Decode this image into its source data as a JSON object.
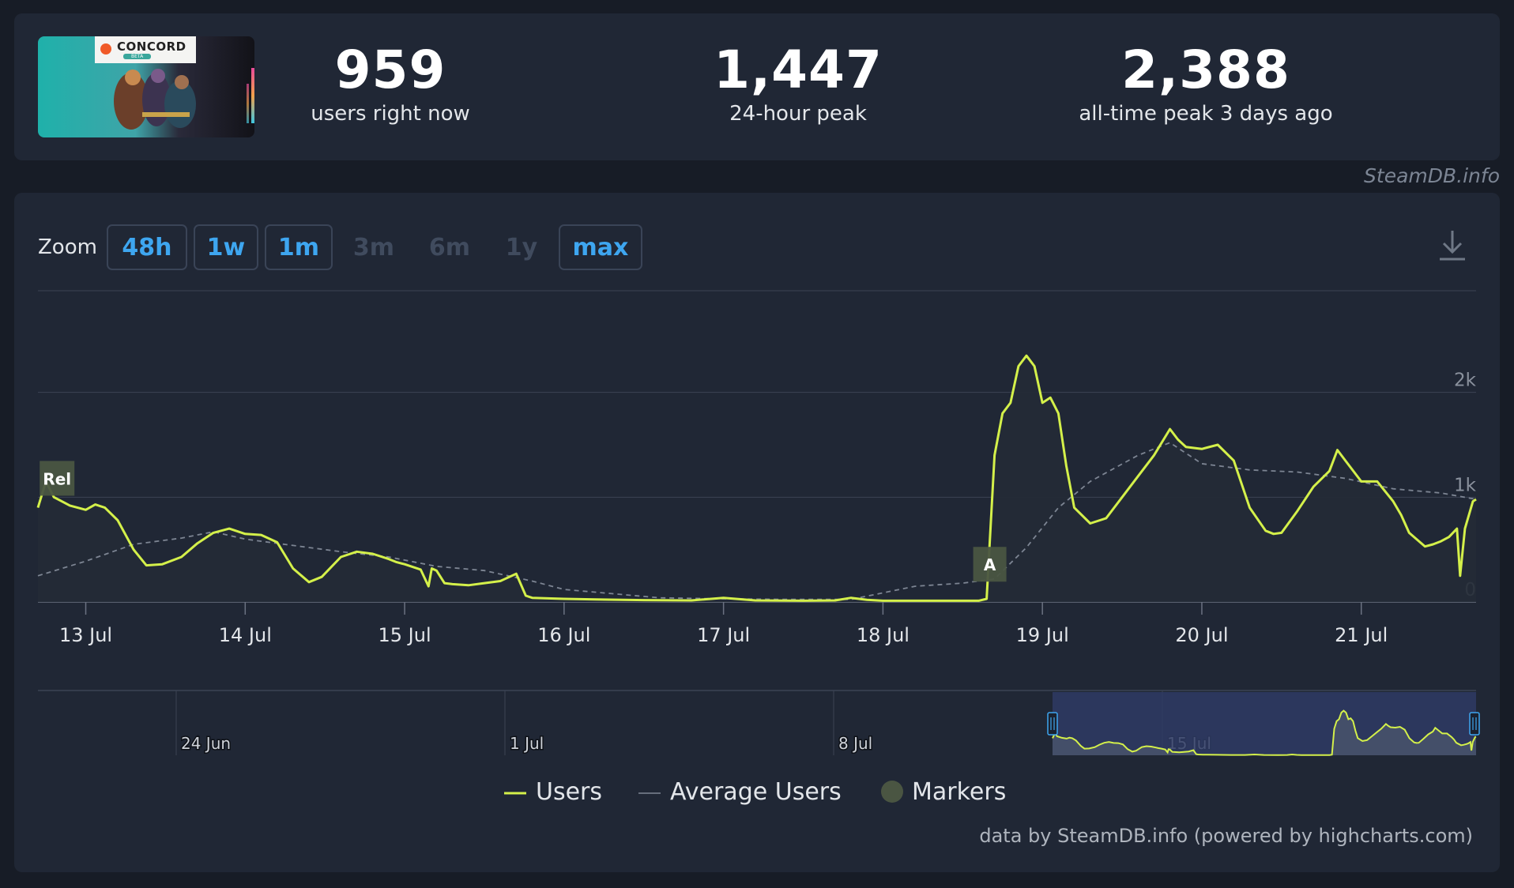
{
  "stats": [
    {
      "value": "959",
      "label": "users right now"
    },
    {
      "value": "1,447",
      "label": "24-hour peak"
    },
    {
      "value": "2,388",
      "label": "all-time peak 3 days ago"
    }
  ],
  "thumbnail": {
    "logo_text": "CONCORD",
    "badge_text": "BETA"
  },
  "source_credit": "SteamDB.info",
  "zoom": {
    "label": "Zoom",
    "buttons": [
      {
        "label": "48h",
        "active": true
      },
      {
        "label": "1w",
        "active": true
      },
      {
        "label": "1m",
        "active": true
      },
      {
        "label": "3m",
        "active": false
      },
      {
        "label": "6m",
        "active": false
      },
      {
        "label": "1y",
        "active": false
      },
      {
        "label": "max",
        "active": true
      }
    ]
  },
  "download_icon": "download-icon",
  "footer_credit": "data by SteamDB.info (powered by highcharts.com)",
  "colors": {
    "users": "#d4f04a",
    "average": "#7d8593",
    "marker": "#4a5542",
    "navigator_band": "#2f3b64",
    "accent": "#3ea6f0"
  },
  "chart_data": {
    "type": "line",
    "x_ticks": [
      "13 Jul",
      "14 Jul",
      "15 Jul",
      "16 Jul",
      "17 Jul",
      "18 Jul",
      "19 Jul",
      "20 Jul",
      "21 Jul"
    ],
    "y_ticks": [
      "0",
      "1k",
      "2k"
    ],
    "ylim": [
      0,
      3000
    ],
    "x_range_days": [
      12.7,
      21.72
    ],
    "grid": true,
    "series": [
      {
        "name": "Users",
        "x": [
          12.7,
          12.75,
          12.8,
          12.9,
          13.0,
          13.06,
          13.12,
          13.2,
          13.3,
          13.38,
          13.48,
          13.6,
          13.7,
          13.8,
          13.9,
          14.0,
          14.1,
          14.2,
          14.3,
          14.4,
          14.48,
          14.6,
          14.7,
          14.8,
          14.9,
          14.95,
          15.0,
          15.1,
          15.15,
          15.17,
          15.2,
          15.25,
          15.3,
          15.4,
          15.5,
          15.6,
          15.7,
          15.76,
          15.8,
          15.9,
          16.0,
          16.2,
          16.5,
          16.8,
          17.0,
          17.2,
          17.5,
          17.7,
          17.8,
          17.9,
          18.0,
          18.3,
          18.6,
          18.65,
          18.7,
          18.75,
          18.8,
          18.85,
          18.9,
          18.95,
          19.0,
          19.05,
          19.1,
          19.15,
          19.2,
          19.3,
          19.4,
          19.5,
          19.6,
          19.7,
          19.8,
          19.85,
          19.9,
          20.0,
          20.1,
          20.2,
          20.3,
          20.4,
          20.45,
          20.5,
          20.6,
          20.7,
          20.8,
          20.85,
          20.9,
          21.0,
          21.1,
          21.2,
          21.25,
          21.3,
          21.4,
          21.45,
          21.5,
          21.55,
          21.6,
          21.62,
          21.65,
          21.7,
          21.72
        ],
        "y": [
          900,
          1150,
          1000,
          920,
          880,
          930,
          900,
          780,
          500,
          350,
          360,
          430,
          560,
          660,
          700,
          650,
          640,
          570,
          320,
          190,
          240,
          430,
          480,
          460,
          410,
          380,
          360,
          310,
          150,
          320,
          300,
          180,
          170,
          160,
          180,
          200,
          270,
          60,
          40,
          35,
          30,
          25,
          18,
          15,
          40,
          15,
          12,
          15,
          40,
          20,
          12,
          12,
          12,
          30,
          1400,
          1800,
          1900,
          2250,
          2350,
          2250,
          1900,
          1950,
          1800,
          1300,
          900,
          750,
          800,
          1000,
          1200,
          1400,
          1650,
          1550,
          1480,
          1460,
          1500,
          1350,
          900,
          680,
          650,
          660,
          870,
          1100,
          1250,
          1450,
          1350,
          1150,
          1150,
          960,
          830,
          660,
          530,
          550,
          580,
          620,
          700,
          250,
          700,
          960,
          980
        ]
      },
      {
        "name": "Average Users",
        "x": [
          12.7,
          13.0,
          13.3,
          13.6,
          13.8,
          14.0,
          14.3,
          14.6,
          14.9,
          15.2,
          15.5,
          15.8,
          16.0,
          16.3,
          16.6,
          17.0,
          17.4,
          17.8,
          18.2,
          18.5,
          18.7,
          18.9,
          19.1,
          19.3,
          19.6,
          19.8,
          20.0,
          20.3,
          20.6,
          20.9,
          21.2,
          21.5,
          21.72
        ],
        "y": [
          250,
          390,
          550,
          610,
          670,
          600,
          540,
          480,
          430,
          340,
          300,
          200,
          120,
          80,
          40,
          30,
          25,
          25,
          150,
          180,
          220,
          520,
          900,
          1150,
          1400,
          1520,
          1320,
          1260,
          1240,
          1180,
          1080,
          1040,
          980
        ]
      }
    ],
    "markers": [
      {
        "label": "Rel",
        "x": 12.82,
        "y": 1180
      },
      {
        "label": "A",
        "x": 18.67,
        "y": 360
      }
    ],
    "navigator": {
      "ticks": [
        "24 Jun",
        "1 Jul",
        "8 Jul",
        "15 Jul"
      ],
      "selected_from": "12 Jul",
      "selected_to": "21 Jul"
    },
    "legend": {
      "items": [
        "Users",
        "Average Users",
        "Markers"
      ],
      "placement": "bottom-center"
    }
  }
}
